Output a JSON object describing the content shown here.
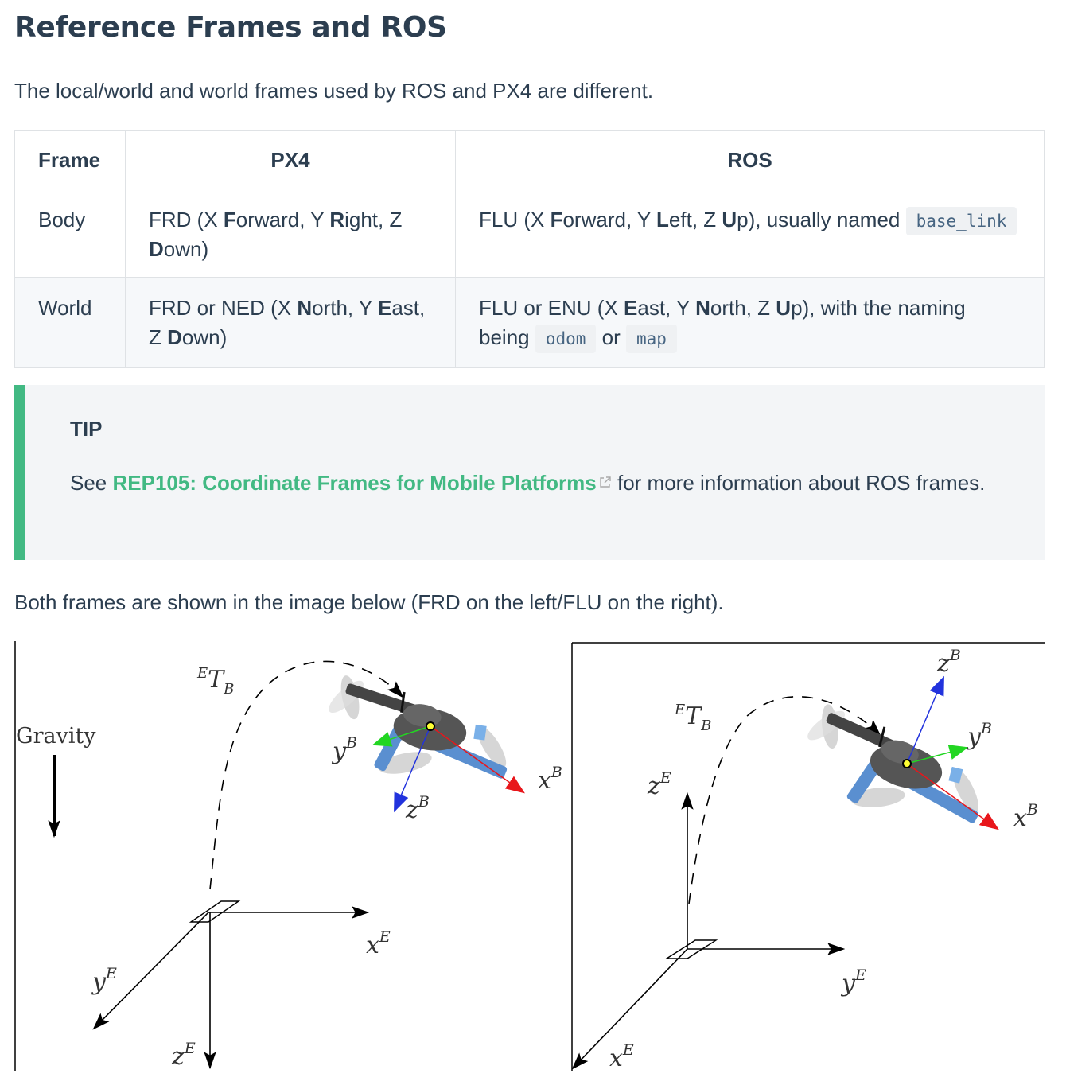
{
  "heading": "Reference Frames and ROS",
  "intro": "The local/world and world frames used by ROS and PX4 are different.",
  "table": {
    "headers": [
      "Frame",
      "PX4",
      "ROS"
    ],
    "rows": [
      {
        "frame": "Body",
        "px4": [
          "FRD (X ",
          "F",
          "orward, Y ",
          "R",
          "ight, Z ",
          "D",
          "own)"
        ],
        "ros_pre": [
          "FLU (X ",
          "F",
          "orward, Y ",
          "L",
          "eft, Z ",
          "U",
          "p), usually named "
        ],
        "ros_codes": [
          "base_link"
        ]
      },
      {
        "frame": "World",
        "px4": [
          "FRD or NED (X ",
          "N",
          "orth, Y ",
          "E",
          "ast, Z ",
          "D",
          "own)"
        ],
        "ros_pre": [
          "FLU or ENU (X ",
          "E",
          "ast, Y ",
          "N",
          "orth, Z ",
          "U",
          "p), with the naming being "
        ],
        "ros_codes": [
          "odom",
          "map"
        ],
        "ros_join": " or "
      }
    ]
  },
  "tip": {
    "title": "TIP",
    "text_before": "See ",
    "link": "REP105: Coordinate Frames for Mobile Platforms",
    "text_after": " for more information about ROS frames."
  },
  "caption": "Both frames are shown in the image below (FRD on the left/FLU on the right).",
  "figure": {
    "left": {
      "gravity": "Gravity",
      "transform": {
        "sup": "E",
        "main": "T",
        "sub": "B"
      },
      "world_axes": [
        {
          "base": "x",
          "sup": "E"
        },
        {
          "base": "y",
          "sup": "E"
        },
        {
          "base": "z",
          "sup": "E"
        }
      ],
      "body_axes": [
        {
          "base": "x",
          "sup": "B"
        },
        {
          "base": "y",
          "sup": "B"
        },
        {
          "base": "z",
          "sup": "B"
        }
      ]
    },
    "right": {
      "transform": {
        "sup": "E",
        "main": "T",
        "sub": "B"
      },
      "world_axes": [
        {
          "base": "x",
          "sup": "E"
        },
        {
          "base": "y",
          "sup": "E"
        },
        {
          "base": "z",
          "sup": "E"
        }
      ],
      "body_axes": [
        {
          "base": "x",
          "sup": "B"
        },
        {
          "base": "y",
          "sup": "B"
        },
        {
          "base": "z",
          "sup": "B"
        }
      ]
    },
    "colors": {
      "x_axis": "#e8161b",
      "y_axis": "#22d622",
      "z_axis": "#2233dd"
    }
  }
}
